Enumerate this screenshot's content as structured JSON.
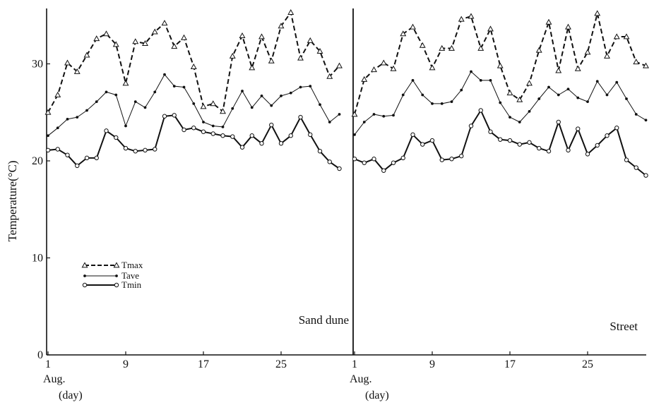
{
  "chart_data": [
    {
      "type": "line",
      "panel_label": "Sand dune",
      "ylabel": "Temperature(°C)",
      "ylim": [
        0,
        36
      ],
      "y_ticks": [
        "0",
        "10",
        "20",
        "30"
      ],
      "xlim": [
        1,
        32
      ],
      "x_ticks": [
        "1",
        "9",
        "17",
        "25"
      ],
      "x_sublabels": [
        "Aug.",
        "(day)"
      ],
      "series": [
        {
          "name": "Tmax",
          "style": "dashed",
          "marker": "triangle",
          "x": [
            1,
            2,
            3,
            4,
            5,
            6,
            7,
            8,
            9,
            10,
            11,
            12,
            13,
            14,
            15,
            16,
            17,
            18,
            19,
            20,
            21,
            22,
            23,
            24,
            25,
            26,
            27,
            28,
            29,
            30,
            31
          ],
          "y": [
            25.0,
            26.8,
            30.1,
            29.2,
            30.9,
            32.6,
            33.1,
            32.0,
            28.0,
            32.3,
            32.1,
            33.3,
            34.2,
            31.8,
            32.7,
            29.7,
            25.6,
            25.9,
            25.1,
            30.8,
            32.9,
            29.6,
            32.8,
            30.3,
            33.9,
            35.3,
            30.6,
            32.4,
            31.3,
            28.7,
            29.8
          ]
        },
        {
          "name": "Tave",
          "style": "solid-thin",
          "marker": "dot",
          "x": [
            1,
            2,
            3,
            4,
            5,
            6,
            7,
            8,
            9,
            10,
            11,
            12,
            13,
            14,
            15,
            16,
            17,
            18,
            19,
            20,
            21,
            22,
            23,
            24,
            25,
            26,
            27,
            28,
            29,
            30,
            31
          ],
          "y": [
            22.6,
            23.4,
            24.3,
            24.5,
            25.2,
            26.1,
            27.1,
            26.8,
            23.6,
            26.1,
            25.5,
            27.1,
            28.9,
            27.7,
            27.6,
            25.9,
            24.0,
            23.6,
            23.5,
            25.4,
            27.2,
            25.5,
            26.7,
            25.7,
            26.7,
            27.0,
            27.6,
            27.7,
            25.8,
            24.0,
            24.8
          ]
        },
        {
          "name": "Tmin",
          "style": "solid-thick",
          "marker": "circle",
          "x": [
            1,
            2,
            3,
            4,
            5,
            6,
            7,
            8,
            9,
            10,
            11,
            12,
            13,
            14,
            15,
            16,
            17,
            18,
            19,
            20,
            21,
            22,
            23,
            24,
            25,
            26,
            27,
            28,
            29,
            30,
            31
          ],
          "y": [
            21.1,
            21.2,
            20.6,
            19.5,
            20.3,
            20.3,
            23.1,
            22.4,
            21.3,
            21.0,
            21.1,
            21.2,
            24.6,
            24.7,
            23.2,
            23.4,
            23.0,
            22.8,
            22.6,
            22.5,
            21.4,
            22.6,
            21.8,
            23.7,
            21.8,
            22.6,
            24.5,
            22.7,
            21.0,
            19.9,
            19.2
          ]
        }
      ],
      "legend": {
        "placement": "lower-left",
        "entries": [
          "Tmax",
          "Tave",
          "Tmin"
        ]
      }
    },
    {
      "type": "line",
      "panel_label": "Street",
      "ylim": [
        0,
        36
      ],
      "xlim": [
        1,
        32
      ],
      "x_ticks": [
        "1",
        "9",
        "17",
        "25"
      ],
      "x_sublabels": [
        "Aug.",
        "(day)"
      ],
      "series": [
        {
          "name": "Tmax",
          "style": "dashed",
          "marker": "triangle",
          "x": [
            1,
            2,
            3,
            4,
            5,
            6,
            7,
            8,
            9,
            10,
            11,
            12,
            13,
            14,
            15,
            16,
            17,
            18,
            19,
            20,
            21,
            22,
            23,
            24,
            25,
            26,
            27,
            28,
            29,
            30,
            31
          ],
          "y": [
            24.8,
            28.4,
            29.4,
            30.1,
            29.5,
            33.1,
            33.8,
            31.9,
            29.6,
            31.6,
            31.6,
            34.6,
            34.9,
            31.6,
            33.6,
            29.8,
            27.0,
            26.3,
            28.0,
            31.4,
            34.3,
            29.3,
            33.8,
            29.5,
            31.2,
            35.2,
            30.8,
            32.8,
            32.8,
            30.2,
            29.8
          ]
        },
        {
          "name": "Tave",
          "style": "solid-thin",
          "marker": "dot",
          "x": [
            1,
            2,
            3,
            4,
            5,
            6,
            7,
            8,
            9,
            10,
            11,
            12,
            13,
            14,
            15,
            16,
            17,
            18,
            19,
            20,
            21,
            22,
            23,
            24,
            25,
            26,
            27,
            28,
            29,
            30,
            31
          ],
          "y": [
            22.7,
            24.0,
            24.8,
            24.6,
            24.7,
            26.8,
            28.3,
            26.8,
            25.9,
            25.9,
            26.1,
            27.3,
            29.2,
            28.3,
            28.3,
            26.0,
            24.5,
            24.0,
            25.1,
            26.4,
            27.6,
            26.8,
            27.4,
            26.5,
            26.1,
            28.2,
            26.8,
            28.1,
            26.4,
            24.8,
            24.2
          ]
        },
        {
          "name": "Tmin",
          "style": "solid-thick",
          "marker": "circle",
          "x": [
            1,
            2,
            3,
            4,
            5,
            6,
            7,
            8,
            9,
            10,
            11,
            12,
            13,
            14,
            15,
            16,
            17,
            18,
            19,
            20,
            21,
            22,
            23,
            24,
            25,
            26,
            27,
            28,
            29,
            30,
            31
          ],
          "y": [
            20.2,
            19.8,
            20.2,
            19.0,
            19.8,
            20.3,
            22.7,
            21.7,
            22.1,
            20.1,
            20.2,
            20.5,
            23.6,
            25.2,
            23.0,
            22.2,
            22.1,
            21.7,
            21.9,
            21.3,
            21.0,
            24.0,
            21.1,
            23.3,
            20.7,
            21.6,
            22.6,
            23.4,
            20.1,
            19.3,
            18.5
          ]
        }
      ]
    }
  ]
}
